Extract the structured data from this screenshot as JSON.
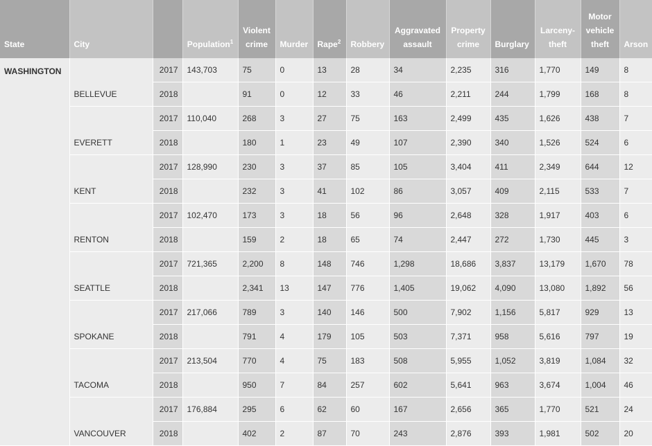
{
  "headers": {
    "state": "State",
    "city": "City",
    "year": "",
    "population": "Population",
    "population_sup": "1",
    "violent_line1": "Violent",
    "violent_line2": "crime",
    "murder": "Murder",
    "rape": "Rape",
    "rape_sup": "2",
    "robbery": "Robbery",
    "aggravated_line1": "Aggravated",
    "aggravated_line2": "assault",
    "property_line1": "Property",
    "property_line2": "crime",
    "burglary": "Burglary",
    "larceny_line1": "Larceny-",
    "larceny_line2": "theft",
    "motor_line1": "Motor",
    "motor_line2": "vehicle",
    "motor_line3": "theft",
    "arson": "Arson"
  },
  "state": "WASHINGTON",
  "cities": [
    {
      "name": "BELLEVUE",
      "rows": [
        {
          "year": "2017",
          "population": "143,703",
          "violent": "75",
          "murder": "0",
          "rape": "13",
          "robbery": "28",
          "aggravated": "34",
          "property": "2,235",
          "burglary": "316",
          "larceny": "1,770",
          "motor": "149",
          "arson": "8"
        },
        {
          "year": "2018",
          "population": "",
          "violent": "91",
          "murder": "0",
          "rape": "12",
          "robbery": "33",
          "aggravated": "46",
          "property": "2,211",
          "burglary": "244",
          "larceny": "1,799",
          "motor": "168",
          "arson": "8"
        }
      ]
    },
    {
      "name": "EVERETT",
      "rows": [
        {
          "year": "2017",
          "population": "110,040",
          "violent": "268",
          "murder": "3",
          "rape": "27",
          "robbery": "75",
          "aggravated": "163",
          "property": "2,499",
          "burglary": "435",
          "larceny": "1,626",
          "motor": "438",
          "arson": "7"
        },
        {
          "year": "2018",
          "population": "",
          "violent": "180",
          "murder": "1",
          "rape": "23",
          "robbery": "49",
          "aggravated": "107",
          "property": "2,390",
          "burglary": "340",
          "larceny": "1,526",
          "motor": "524",
          "arson": "6"
        }
      ]
    },
    {
      "name": "KENT",
      "rows": [
        {
          "year": "2017",
          "population": "128,990",
          "violent": "230",
          "murder": "3",
          "rape": "37",
          "robbery": "85",
          "aggravated": "105",
          "property": "3,404",
          "burglary": "411",
          "larceny": "2,349",
          "motor": "644",
          "arson": "12"
        },
        {
          "year": "2018",
          "population": "",
          "violent": "232",
          "murder": "3",
          "rape": "41",
          "robbery": "102",
          "aggravated": "86",
          "property": "3,057",
          "burglary": "409",
          "larceny": "2,115",
          "motor": "533",
          "arson": "7"
        }
      ]
    },
    {
      "name": "RENTON",
      "rows": [
        {
          "year": "2017",
          "population": "102,470",
          "violent": "173",
          "murder": "3",
          "rape": "18",
          "robbery": "56",
          "aggravated": "96",
          "property": "2,648",
          "burglary": "328",
          "larceny": "1,917",
          "motor": "403",
          "arson": "6"
        },
        {
          "year": "2018",
          "population": "",
          "violent": "159",
          "murder": "2",
          "rape": "18",
          "robbery": "65",
          "aggravated": "74",
          "property": "2,447",
          "burglary": "272",
          "larceny": "1,730",
          "motor": "445",
          "arson": "3"
        }
      ]
    },
    {
      "name": "SEATTLE",
      "rows": [
        {
          "year": "2017",
          "population": "721,365",
          "violent": "2,200",
          "murder": "8",
          "rape": "148",
          "robbery": "746",
          "aggravated": "1,298",
          "property": "18,686",
          "burglary": "3,837",
          "larceny": "13,179",
          "motor": "1,670",
          "arson": "78"
        },
        {
          "year": "2018",
          "population": "",
          "violent": "2,341",
          "murder": "13",
          "rape": "147",
          "robbery": "776",
          "aggravated": "1,405",
          "property": "19,062",
          "burglary": "4,090",
          "larceny": "13,080",
          "motor": "1,892",
          "arson": "56"
        }
      ]
    },
    {
      "name": "SPOKANE",
      "rows": [
        {
          "year": "2017",
          "population": "217,066",
          "violent": "789",
          "murder": "3",
          "rape": "140",
          "robbery": "146",
          "aggravated": "500",
          "property": "7,902",
          "burglary": "1,156",
          "larceny": "5,817",
          "motor": "929",
          "arson": "13"
        },
        {
          "year": "2018",
          "population": "",
          "violent": "791",
          "murder": "4",
          "rape": "179",
          "robbery": "105",
          "aggravated": "503",
          "property": "7,371",
          "burglary": "958",
          "larceny": "5,616",
          "motor": "797",
          "arson": "19"
        }
      ]
    },
    {
      "name": "TACOMA",
      "rows": [
        {
          "year": "2017",
          "population": "213,504",
          "violent": "770",
          "murder": "4",
          "rape": "75",
          "robbery": "183",
          "aggravated": "508",
          "property": "5,955",
          "burglary": "1,052",
          "larceny": "3,819",
          "motor": "1,084",
          "arson": "32"
        },
        {
          "year": "2018",
          "population": "",
          "violent": "950",
          "murder": "7",
          "rape": "84",
          "robbery": "257",
          "aggravated": "602",
          "property": "5,641",
          "burglary": "963",
          "larceny": "3,674",
          "motor": "1,004",
          "arson": "46"
        }
      ]
    },
    {
      "name": "VANCOUVER",
      "rows": [
        {
          "year": "2017",
          "population": "176,884",
          "violent": "295",
          "murder": "6",
          "rape": "62",
          "robbery": "60",
          "aggravated": "167",
          "property": "2,656",
          "burglary": "365",
          "larceny": "1,770",
          "motor": "521",
          "arson": "24"
        },
        {
          "year": "2018",
          "population": "",
          "violent": "402",
          "murder": "2",
          "rape": "87",
          "robbery": "70",
          "aggravated": "243",
          "property": "2,876",
          "burglary": "393",
          "larceny": "1,981",
          "motor": "502",
          "arson": "20"
        }
      ]
    }
  ]
}
